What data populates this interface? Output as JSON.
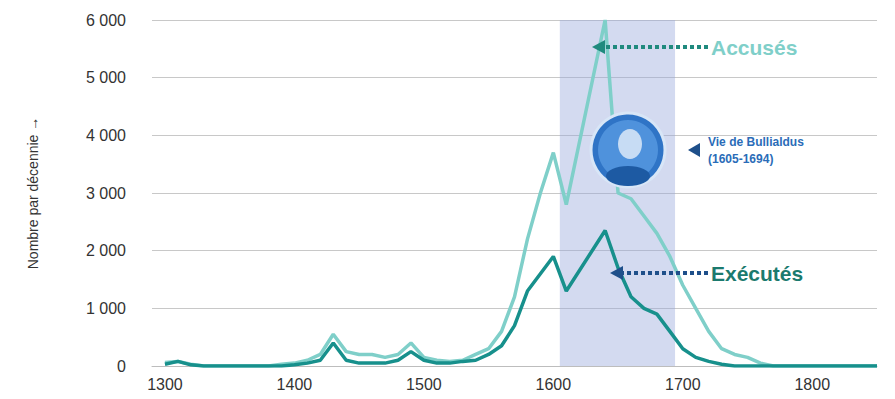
{
  "chart_data": {
    "type": "line",
    "ylabel": "Nombre par décennie →",
    "x": [
      1300,
      1310,
      1320,
      1330,
      1350,
      1380,
      1390,
      1400,
      1410,
      1420,
      1430,
      1440,
      1450,
      1460,
      1470,
      1480,
      1490,
      1500,
      1510,
      1520,
      1530,
      1540,
      1550,
      1560,
      1570,
      1580,
      1590,
      1600,
      1610,
      1640,
      1650,
      1660,
      1670,
      1680,
      1690,
      1700,
      1710,
      1720,
      1730,
      1740,
      1750,
      1760,
      1770,
      1780,
      1800,
      1850
    ],
    "series": [
      {
        "name": "Accusés",
        "color": "#7fcfc9",
        "values": [
          60,
          80,
          30,
          0,
          0,
          0,
          30,
          50,
          100,
          200,
          550,
          250,
          200,
          200,
          150,
          200,
          400,
          150,
          100,
          80,
          100,
          200,
          300,
          600,
          1200,
          2200,
          3000,
          3700,
          2800,
          6000,
          3000,
          2900,
          2600,
          2300,
          1900,
          1400,
          1000,
          600,
          300,
          200,
          150,
          50,
          0,
          0,
          0,
          0
        ]
      },
      {
        "name": "Exécutés",
        "color": "#17908c",
        "values": [
          30,
          80,
          20,
          0,
          0,
          0,
          0,
          20,
          50,
          100,
          400,
          100,
          50,
          50,
          50,
          100,
          250,
          100,
          50,
          50,
          80,
          100,
          200,
          350,
          700,
          1300,
          1600,
          1900,
          1300,
          2350,
          1700,
          1200,
          1000,
          900,
          600,
          300,
          150,
          80,
          30,
          0,
          0,
          0,
          0,
          0,
          0,
          0
        ]
      }
    ],
    "xlim": [
      1290,
      1850
    ],
    "xticks": [
      1300,
      1400,
      1500,
      1600,
      1700,
      1800
    ],
    "ylim": [
      0,
      6000
    ],
    "yticks": [
      0,
      {
        "value": 1000,
        "label": "1 000"
      },
      {
        "value": 2000,
        "label": "2 000"
      },
      {
        "value": 3000,
        "label": "3 000"
      },
      {
        "value": 4000,
        "label": "4 000"
      },
      {
        "value": 5000,
        "label": "5 000"
      },
      {
        "value": 6000,
        "label": "6 000"
      }
    ],
    "grid": true,
    "period": {
      "label": [
        "Vie de Bullialdus",
        "(1605-1694)"
      ],
      "start": 1605,
      "end": 1694
    }
  }
}
